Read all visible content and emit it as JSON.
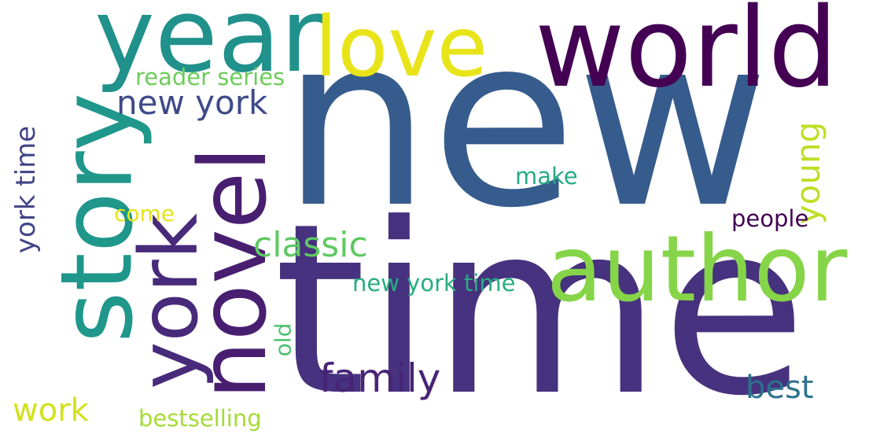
{
  "words": [
    {
      "text": "new",
      "color": "#365c8d"
    },
    {
      "text": "time",
      "color": "#46327e"
    },
    {
      "text": "world",
      "color": "#440154"
    },
    {
      "text": "year",
      "color": "#21918c"
    },
    {
      "text": "love",
      "color": "#e8e419"
    },
    {
      "text": "author",
      "color": "#86d549"
    },
    {
      "text": "story",
      "color": "#1f978b"
    },
    {
      "text": "novel",
      "color": "#481f70"
    },
    {
      "text": "york",
      "color": "#472a7a"
    },
    {
      "text": "new york",
      "color": "#3e4a89"
    },
    {
      "text": "reader series",
      "color": "#6ccd5a"
    },
    {
      "text": "young",
      "color": "#bddf26"
    },
    {
      "text": "york time",
      "color": "#414487"
    },
    {
      "text": "classic",
      "color": "#5ec962"
    },
    {
      "text": "make",
      "color": "#25ab82"
    },
    {
      "text": "come",
      "color": "#e5e419"
    },
    {
      "text": "people",
      "color": "#440154"
    },
    {
      "text": "new york time",
      "color": "#26ad81"
    },
    {
      "text": "old",
      "color": "#4ac16d"
    },
    {
      "text": "family",
      "color": "#482475"
    },
    {
      "text": "best",
      "color": "#2c728e"
    },
    {
      "text": "work",
      "color": "#d2e21b"
    },
    {
      "text": "bestselling",
      "color": "#a5db36"
    }
  ]
}
